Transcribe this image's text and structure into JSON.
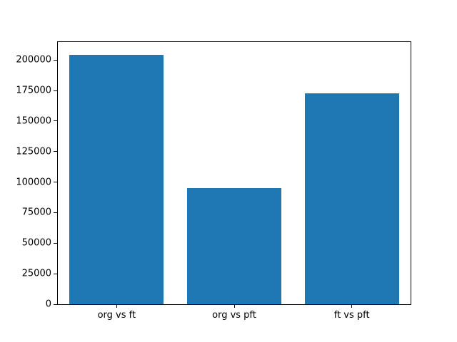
{
  "chart_data": {
    "type": "bar",
    "categories": [
      "org vs ft",
      "org vs pft",
      "ft vs pft"
    ],
    "values": [
      204500,
      95000,
      173000
    ],
    "title": "",
    "xlabel": "",
    "ylabel": "",
    "ylim": [
      0,
      214725
    ],
    "yticks": [
      0,
      25000,
      50000,
      75000,
      100000,
      125000,
      150000,
      175000,
      200000
    ],
    "bar_color": "#1f77b4",
    "axis_color": "#000000",
    "background_color": "#ffffff",
    "grid": false,
    "legend_position": "none",
    "bar_width_fraction": 0.8
  }
}
